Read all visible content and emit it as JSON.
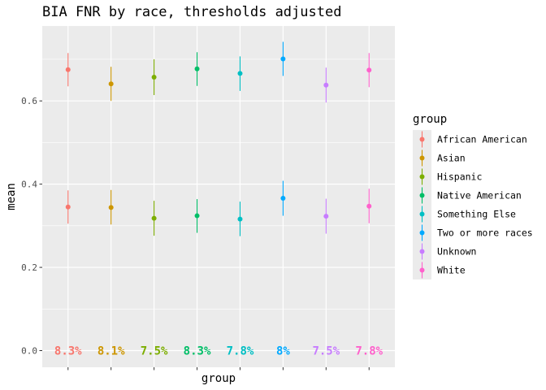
{
  "chart_data": {
    "type": "scatter",
    "title": "BIA FNR by race, thresholds adjusted",
    "xlabel": "group",
    "ylabel": "mean",
    "ylim": [
      -0.04,
      0.78
    ],
    "yticks": [
      0.0,
      0.2,
      0.4,
      0.6
    ],
    "ytick_labels": [
      "0.0",
      "0.2",
      "0.4",
      "0.6"
    ],
    "grid": true,
    "legend": {
      "title": "group",
      "placement": "right"
    },
    "groups": [
      {
        "name": "African American",
        "color": "#F8766D",
        "upper": {
          "mean": 0.675,
          "lo": 0.635,
          "hi": 0.715
        },
        "lower": {
          "mean": 0.345,
          "lo": 0.305,
          "hi": 0.385
        },
        "pct": "8.3%"
      },
      {
        "name": "Asian",
        "color": "#CD9600",
        "upper": {
          "mean": 0.641,
          "lo": 0.6,
          "hi": 0.682
        },
        "lower": {
          "mean": 0.344,
          "lo": 0.303,
          "hi": 0.386
        },
        "pct": "8.1%"
      },
      {
        "name": "Hispanic",
        "color": "#7CAE00",
        "upper": {
          "mean": 0.657,
          "lo": 0.614,
          "hi": 0.7
        },
        "lower": {
          "mean": 0.318,
          "lo": 0.276,
          "hi": 0.36
        },
        "pct": "7.5%"
      },
      {
        "name": "Native American",
        "color": "#00BE67",
        "upper": {
          "mean": 0.677,
          "lo": 0.636,
          "hi": 0.717
        },
        "lower": {
          "mean": 0.324,
          "lo": 0.283,
          "hi": 0.364
        },
        "pct": "8.3%"
      },
      {
        "name": "Something Else",
        "color": "#00BFC4",
        "upper": {
          "mean": 0.666,
          "lo": 0.624,
          "hi": 0.707
        },
        "lower": {
          "mean": 0.316,
          "lo": 0.275,
          "hi": 0.358
        },
        "pct": "7.8%"
      },
      {
        "name": "Two or more races",
        "color": "#00A9FF",
        "upper": {
          "mean": 0.701,
          "lo": 0.66,
          "hi": 0.742
        },
        "lower": {
          "mean": 0.366,
          "lo": 0.324,
          "hi": 0.408
        },
        "pct": "8%"
      },
      {
        "name": "Unknown",
        "color": "#C77CFF",
        "upper": {
          "mean": 0.638,
          "lo": 0.596,
          "hi": 0.68
        },
        "lower": {
          "mean": 0.323,
          "lo": 0.281,
          "hi": 0.365
        },
        "pct": "7.5%"
      },
      {
        "name": "White",
        "color": "#FF61CC",
        "upper": {
          "mean": 0.674,
          "lo": 0.633,
          "hi": 0.715
        },
        "lower": {
          "mean": 0.347,
          "lo": 0.306,
          "hi": 0.389
        },
        "pct": "7.8%"
      }
    ]
  }
}
